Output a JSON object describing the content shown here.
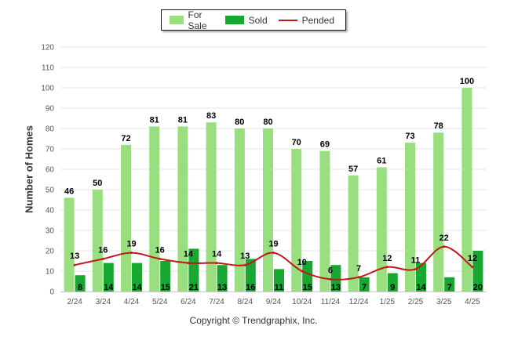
{
  "chart_data": {
    "type": "bar",
    "title": "",
    "xlabel": "",
    "ylabel": "Number of Homes",
    "ylim": [
      0,
      120
    ],
    "yticks": [
      0,
      10,
      20,
      30,
      40,
      50,
      60,
      70,
      80,
      90,
      100,
      110,
      120
    ],
    "grid": true,
    "legend_position": "top-center",
    "categories": [
      "2/24",
      "3/24",
      "4/24",
      "5/24",
      "6/24",
      "7/24",
      "8/24",
      "9/24",
      "10/24",
      "11/24",
      "12/24",
      "1/25",
      "2/25",
      "3/25",
      "4/25"
    ],
    "series": [
      {
        "name": "For Sale",
        "kind": "bar",
        "color": "#9adf7f",
        "values": [
          46,
          50,
          72,
          81,
          81,
          83,
          80,
          80,
          70,
          69,
          57,
          61,
          73,
          78,
          100
        ]
      },
      {
        "name": "Sold",
        "kind": "bar",
        "color": "#18a832",
        "values": [
          8,
          14,
          14,
          15,
          21,
          13,
          16,
          11,
          15,
          13,
          7,
          9,
          14,
          7,
          20
        ]
      },
      {
        "name": "Pended",
        "kind": "line",
        "color": "#c01818",
        "values": [
          13,
          16,
          19,
          16,
          14,
          14,
          13,
          19,
          10,
          6,
          7,
          12,
          11,
          22,
          12
        ]
      }
    ]
  },
  "footer": {
    "copyright": "Copyright © Trendgraphix, Inc."
  }
}
